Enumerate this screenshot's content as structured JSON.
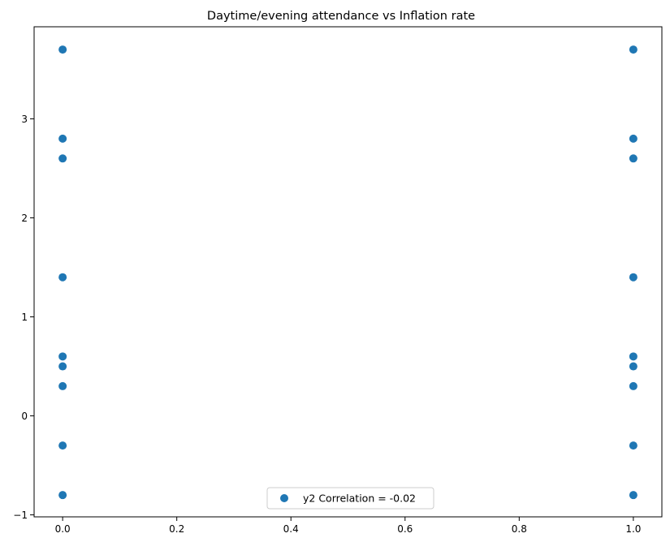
{
  "chart_data": {
    "type": "scatter",
    "title": "Daytime/evening attendance\t vs Inflation rate",
    "xlabel": "",
    "ylabel": "",
    "xlim": [
      -0.05,
      1.05
    ],
    "ylim": [
      -1.02,
      3.93
    ],
    "x_ticks": [
      0.0,
      0.2,
      0.4,
      0.6,
      0.8,
      1.0
    ],
    "x_tick_labels": [
      "0.0",
      "0.2",
      "0.4",
      "0.6",
      "0.8",
      "1.0"
    ],
    "y_ticks": [
      -1,
      0,
      1,
      2,
      3
    ],
    "y_tick_labels": [
      "−1",
      "0",
      "1",
      "2",
      "3"
    ],
    "grid": false,
    "legend_position": "bottom-center",
    "series": [
      {
        "name": "y2 Correlation = -0.02",
        "color": "#1f77b4",
        "marker": "circle",
        "points": [
          {
            "x": 0,
            "y": 3.7
          },
          {
            "x": 0,
            "y": 2.8
          },
          {
            "x": 0,
            "y": 2.6
          },
          {
            "x": 0,
            "y": 1.4
          },
          {
            "x": 0,
            "y": 0.6
          },
          {
            "x": 0,
            "y": 0.5
          },
          {
            "x": 0,
            "y": 0.3
          },
          {
            "x": 0,
            "y": -0.3
          },
          {
            "x": 0,
            "y": -0.8
          },
          {
            "x": 1,
            "y": 3.7
          },
          {
            "x": 1,
            "y": 2.8
          },
          {
            "x": 1,
            "y": 2.6
          },
          {
            "x": 1,
            "y": 1.4
          },
          {
            "x": 1,
            "y": 0.6
          },
          {
            "x": 1,
            "y": 0.5
          },
          {
            "x": 1,
            "y": 0.3
          },
          {
            "x": 1,
            "y": -0.3
          },
          {
            "x": 1,
            "y": -0.8
          }
        ]
      }
    ]
  }
}
